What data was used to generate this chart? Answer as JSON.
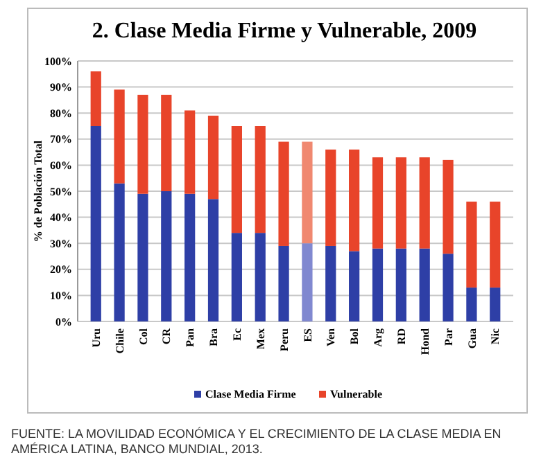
{
  "chart_data": {
    "type": "bar",
    "stacked": true,
    "title": "2. Clase Media Firme y Vulnerable, 2009",
    "ylabel": "% de Población Total",
    "categories": [
      "Uru",
      "Chile",
      "Col",
      "CR",
      "Pan",
      "Bra",
      "Ec",
      "Mex",
      "Peru",
      "ES",
      "Ven",
      "Bol",
      "Arg",
      "RD",
      "Hond",
      "Par",
      "Gua",
      "Nic"
    ],
    "series": [
      {
        "name": "Clase Media Firme",
        "color": "#2e3fa6",
        "colors": [
          "#2e3fa6",
          "#2e3fa6",
          "#2e3fa6",
          "#2e3fa6",
          "#2e3fa6",
          "#2e3fa6",
          "#2e3fa6",
          "#2e3fa6",
          "#2e3fa6",
          "#8088d0",
          "#2e3fa6",
          "#2e3fa6",
          "#2e3fa6",
          "#2e3fa6",
          "#2e3fa6",
          "#2e3fa6",
          "#2e3fa6",
          "#2e3fa6"
        ],
        "values": [
          75,
          53,
          49,
          50,
          49,
          47,
          34,
          34,
          29,
          30,
          29,
          27,
          28,
          28,
          28,
          26,
          13,
          13
        ]
      },
      {
        "name": "Vulnerable",
        "color": "#e8442a",
        "colors": [
          "#e8442a",
          "#e8442a",
          "#e8442a",
          "#e8442a",
          "#e8442a",
          "#e8442a",
          "#e8442a",
          "#e8442a",
          "#e8442a",
          "#f08870",
          "#e8442a",
          "#e8442a",
          "#e8442a",
          "#e8442a",
          "#e8442a",
          "#e8442a",
          "#e8442a",
          "#e8442a"
        ],
        "values": [
          21,
          36,
          38,
          37,
          32,
          32,
          41,
          41,
          40,
          39,
          37,
          39,
          35,
          35,
          35,
          36,
          33,
          33
        ]
      }
    ],
    "ylim": [
      0,
      100
    ],
    "yticks": [
      {
        "value": 0,
        "label": "0%"
      },
      {
        "value": 10,
        "label": "10%"
      },
      {
        "value": 20,
        "label": "20%"
      },
      {
        "value": 30,
        "label": "30%"
      },
      {
        "value": 40,
        "label": "40%"
      },
      {
        "value": 50,
        "label": "50%"
      },
      {
        "value": 60,
        "label": "60%"
      },
      {
        "value": 70,
        "label": "70%"
      },
      {
        "value": 80,
        "label": "80%"
      },
      {
        "value": 90,
        "label": "90%"
      },
      {
        "value": 100,
        "label": "100%"
      }
    ],
    "grid": "y",
    "legend": "bottom",
    "annotations": [
      "FUENTE: LA MOVILIDAD ECONÓMICA Y EL CRECIMIENTO DE LA CLASE MEDIA EN AMÉRICA LATINA, BANCO MUNDIAL, 2013."
    ]
  }
}
